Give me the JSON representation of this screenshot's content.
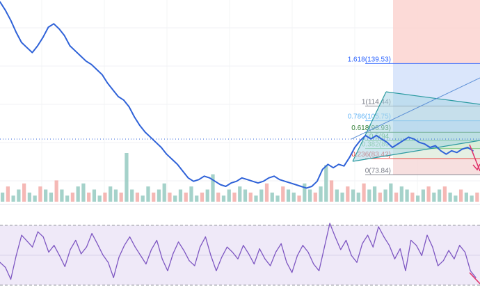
{
  "colors": {
    "price_line": "#2f62d8",
    "rsi_line": "#7e57c2",
    "rsi_band": "#efe9f8",
    "fib_zone_top": "#fbd3d0",
    "fib_zone_mid": "#d6e3fb",
    "fib_zone_low": "#cfe9e1",
    "channel": "#2a9aa0",
    "arrow": "#e0336b",
    "volume_up": "#8fc7bd",
    "volume_down": "#f2a6a2"
  },
  "chart_data": [
    {
      "type": "line",
      "panel": "price",
      "title": "",
      "xlabel": "",
      "ylabel": "",
      "series": [
        {
          "values": [
            176,
            171,
            165,
            158,
            152,
            149,
            146,
            150,
            155,
            161,
            163,
            160,
            156,
            150,
            147,
            144,
            141,
            139,
            136,
            133,
            128,
            124,
            120,
            118,
            114,
            108,
            103,
            99,
            96,
            93,
            90,
            86,
            83,
            80,
            76,
            72,
            70,
            71,
            73,
            72,
            70,
            68,
            67,
            69,
            70,
            72,
            71,
            70,
            69,
            70,
            72,
            73,
            71,
            70,
            69,
            68,
            67,
            66,
            67,
            70,
            77,
            80,
            78,
            80,
            79,
            84,
            90,
            94,
            97,
            95,
            97,
            95,
            93,
            90,
            92,
            94,
            96,
            95,
            93,
            92,
            90,
            91,
            88,
            86,
            88,
            87,
            89,
            90,
            88
          ]
        }
      ],
      "fibonacci_levels": [
        {
          "label": "1.618(139.53)",
          "value": 139.53
        },
        {
          "label": "1(114.44)",
          "value": 114.44
        },
        {
          "label": "0.786(105.75)",
          "value": 105.75
        },
        {
          "label": "0.618(98.93)",
          "value": 98.93
        },
        {
          "label": "0.5(94.",
          "value": 94.1
        },
        {
          "label": "0.382(89.",
          "value": 89.3
        },
        {
          "label": "0.236(83.42)",
          "value": 83.42
        },
        {
          "label": "0(73.84)",
          "value": 73.84
        }
      ],
      "ylim": [
        60,
        175
      ]
    },
    {
      "type": "bar",
      "panel": "volume",
      "values": [
        3,
        5,
        2,
        4,
        6,
        3,
        2,
        5,
        4,
        3,
        7,
        4,
        2,
        3,
        5,
        6,
        3,
        4,
        2,
        3,
        5,
        4,
        3,
        16,
        4,
        3,
        2,
        5,
        3,
        4,
        6,
        3,
        2,
        4,
        3,
        5,
        2,
        3,
        4,
        9,
        3,
        2,
        4,
        3,
        5,
        4,
        3,
        2,
        4,
        6,
        3,
        2,
        5,
        4,
        3,
        2,
        6,
        4,
        3,
        5,
        12,
        7,
        4,
        3,
        5,
        4,
        3,
        6,
        4,
        5,
        3,
        4,
        6,
        3,
        5,
        4,
        3,
        2,
        4,
        5,
        3,
        4,
        5,
        3,
        2,
        4,
        3,
        2,
        3
      ]
    },
    {
      "type": "line",
      "panel": "rsi",
      "series": [
        {
          "values": [
            40,
            34,
            20,
            48,
            72,
            65,
            58,
            76,
            70,
            52,
            60,
            48,
            35,
            55,
            66,
            50,
            58,
            74,
            62,
            49,
            40,
            22,
            46,
            60,
            70,
            58,
            48,
            38,
            55,
            66,
            44,
            30,
            50,
            64,
            54,
            42,
            36,
            58,
            70,
            48,
            30,
            46,
            58,
            52,
            44,
            60,
            50,
            38,
            56,
            44,
            36,
            52,
            62,
            40,
            28,
            48,
            60,
            52,
            38,
            30,
            58,
            86,
            70,
            55,
            66,
            48,
            40,
            62,
            72,
            58,
            82,
            70,
            60,
            44,
            56,
            30,
            66,
            60,
            48,
            72,
            58,
            36,
            42,
            54,
            44,
            60,
            52,
            30,
            22
          ]
        }
      ],
      "ylim": [
        0,
        100
      ]
    }
  ]
}
